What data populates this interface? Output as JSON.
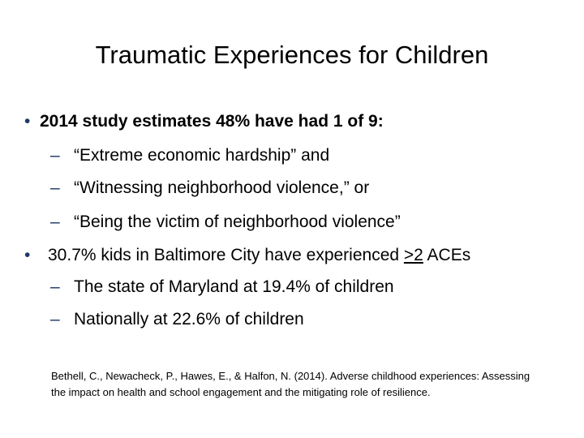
{
  "slide": {
    "title": "Traumatic Experiences for Children",
    "bullets": [
      {
        "marker": "•",
        "text": "2014 study estimates 48% have had 1 of 9:",
        "sub_items": [
          {
            "marker": "–",
            "text": "“Extreme economic hardship” and"
          },
          {
            "marker": "–",
            "text": "“Witnessing neighborhood violence,” or"
          },
          {
            "marker": "–",
            "text": "“Being the victim of neighborhood violence”"
          }
        ]
      },
      {
        "marker": "•",
        "text_before": "30.7% kids in Baltimore City have experienced ",
        "text_emphasis": ">2",
        "text_after": " ACEs",
        "sub_items": [
          {
            "marker": "–",
            "text": "The state of Maryland at 19.4% of children"
          },
          {
            "marker": "–",
            "text": "Nationally at 22.6% of children"
          }
        ]
      }
    ],
    "citation": "Bethell, C., Newacheck, P., Hawes, E., & Halfon, N. (2014). Adverse childhood experiences: Assessing the impact on health and school engagement and the mitigating role of resilience.",
    "colors": {
      "text": "#000000",
      "accent": "#1f3864",
      "background": "#ffffff"
    }
  }
}
